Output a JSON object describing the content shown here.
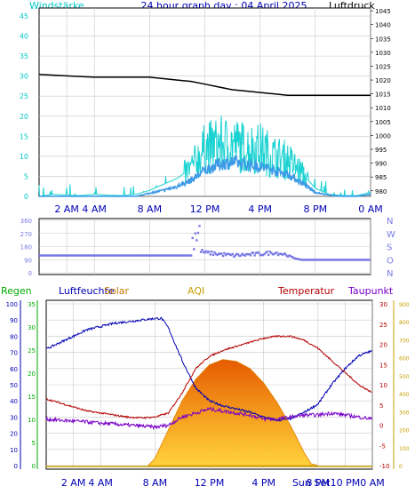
{
  "header": {
    "wind_label": "Windstärke",
    "title": "24 hour graph day : 04 April 2025",
    "pressure_label": "Luftdruck"
  },
  "lower_header": {
    "rain_label": "Regen",
    "humidity_label": "Luftfeuchte",
    "solar_label": "Solar",
    "aqi_label": "AQI",
    "temp_label": "Temperatur",
    "dew_label": "Taupunkt"
  },
  "colors": {
    "wind_label": "#00c8c8",
    "wind_gust": "#19d2d2",
    "wind_avg": "#3c9ae6",
    "pressure": "#000000",
    "direction": "#7878e6",
    "rain": "#00aa00",
    "humidity": "#0000b4",
    "temperature": "#b40000",
    "dewpoint": "#7800c8",
    "solar_top": "#ffd23c",
    "solar_bottom": "#e65a00",
    "aqi": "#c8a000",
    "grid": "#c8c8c8",
    "tick": "#0000b4"
  },
  "chart_data": [
    {
      "type": "line",
      "name": "wind-pressure",
      "x_ticks": [
        "2 AM",
        "4 AM",
        "8 AM",
        "12 PM",
        "4 PM",
        "8 PM",
        "0 AM"
      ],
      "x_tick_hours": [
        2,
        4,
        8,
        12,
        16,
        20,
        24
      ],
      "xlim_hours": [
        0,
        24
      ],
      "left_axis": {
        "label": "Windstärke",
        "ylim": [
          0,
          47
        ],
        "ticks": [
          "0",
          "5",
          "10",
          "15",
          "20",
          "25",
          "30",
          "35",
          "40",
          "45"
        ]
      },
      "right_axis": {
        "label": "Luftdruck",
        "ylim": [
          978,
          1046
        ],
        "ticks": [
          "980",
          "985",
          "990",
          "995",
          "1000",
          "1005",
          "1010",
          "1015",
          "1020",
          "1025",
          "1030",
          "1035",
          "1040",
          "1045"
        ]
      },
      "series": [
        {
          "name": "Luftdruck",
          "axis": "right",
          "x": [
            0,
            2,
            4,
            6,
            8,
            9,
            10,
            11,
            12,
            13,
            14,
            15,
            16,
            17,
            18,
            19,
            20,
            21,
            22,
            23,
            24
          ],
          "y": [
            1022,
            1021.5,
            1021,
            1021,
            1021,
            1020.5,
            1020,
            1019.5,
            1018.5,
            1017.5,
            1016.5,
            1016,
            1015.5,
            1015,
            1014.5,
            1014.5,
            1014.5,
            1014.5,
            1014.5,
            1014.5,
            1014.5
          ]
        },
        {
          "axis": "left",
          "x": [
            0,
            1,
            2,
            3,
            4,
            5,
            6,
            7,
            8,
            9,
            10,
            11,
            12,
            13,
            14,
            15,
            16,
            17,
            18,
            19,
            20,
            21,
            22,
            23,
            24
          ],
          "y": [
            0,
            0.5,
            0.3,
            0.2,
            0.5,
            0.3,
            0.2,
            0.5,
            1.5,
            3,
            4.5,
            7,
            12,
            13,
            13,
            12,
            12,
            10,
            9,
            6,
            2,
            0.5,
            0.2,
            0.2,
            1
          ]
        },
        {
          "axis": "left",
          "x": [
            0,
            1,
            2,
            3,
            4,
            5,
            6,
            7,
            8,
            9,
            10,
            11,
            12,
            13,
            14,
            15,
            16,
            17,
            18,
            19,
            20,
            21,
            22,
            23,
            24
          ],
          "y": [
            0,
            0,
            0,
            0,
            0,
            0,
            0,
            0,
            0.8,
            1.5,
            2.5,
            4,
            6.5,
            8,
            8.5,
            8,
            7.5,
            6.5,
            5.5,
            3.5,
            1,
            0.3,
            0,
            0,
            0.5
          ]
        }
      ]
    },
    {
      "type": "scatter",
      "name": "wind-direction",
      "xlim_hours": [
        0,
        24
      ],
      "left_axis": {
        "ylim": [
          0,
          360
        ],
        "ticks": [
          "0",
          "90",
          "180",
          "270",
          "360"
        ]
      },
      "right_axis": {
        "ticks": [
          "N",
          "W",
          "S",
          "O",
          "N"
        ]
      },
      "series": [
        {
          "axis": "left",
          "x": [
            0,
            2,
            4,
            6,
            8,
            9,
            10,
            10.5,
            11,
            11.2,
            11.5,
            12,
            13,
            14,
            15,
            16,
            17,
            18,
            18.5,
            19,
            20,
            21,
            22,
            23,
            24
          ],
          "y": [
            120,
            120,
            120,
            120,
            120,
            120,
            120,
            120,
            120,
            360,
            160,
            140,
            130,
            120,
            125,
            130,
            140,
            125,
            100,
            90,
            90,
            90,
            90,
            90,
            90
          ]
        }
      ]
    },
    {
      "type": "line",
      "name": "temperature-humidity-solar",
      "x_ticks": [
        "2 AM",
        "4 AM",
        "8 AM",
        "12 PM",
        "4 PM",
        "Sun Set",
        "8 PM",
        "10 PM",
        "0 AM"
      ],
      "x_tick_hours": [
        2,
        4,
        8,
        12,
        16,
        19.5,
        20,
        22,
        24
      ],
      "xlim_hours": [
        0,
        24
      ],
      "left_axis_rain": {
        "label": "Regen",
        "ticks": [
          "0",
          "5",
          "10",
          "15",
          "20",
          "25",
          "30",
          "35"
        ]
      },
      "left_axis_humidity": {
        "label": "Luftfeuchte",
        "ylim": [
          0,
          100
        ],
        "ticks": [
          "0",
          "10",
          "20",
          "30",
          "40",
          "50",
          "60",
          "70",
          "80",
          "90",
          "100"
        ]
      },
      "right_axis_temp": {
        "label": "Temperatur",
        "ylim": [
          -10,
          30
        ],
        "ticks": [
          "-10",
          "-5",
          "0",
          "5",
          "10",
          "15",
          "20",
          "25",
          "30"
        ]
      },
      "right_axis_extra": {
        "ticks": [
          "0",
          "100",
          "200",
          "300",
          "400",
          "500",
          "600",
          "700",
          "800",
          "900"
        ]
      },
      "series": [
        {
          "name": "Luftfeuchte",
          "axis": "humidity",
          "x": [
            0,
            1,
            2,
            3,
            4,
            5,
            6,
            7,
            8,
            8.5,
            9,
            10,
            11,
            12,
            13,
            14,
            15,
            16,
            17,
            18,
            19,
            20,
            21,
            22,
            23,
            24
          ],
          "y": [
            72,
            76,
            80,
            84,
            86,
            88,
            89,
            90,
            91,
            91,
            85,
            65,
            48,
            40,
            37,
            35,
            33,
            30,
            28,
            29,
            33,
            38,
            50,
            60,
            68,
            71
          ]
        },
        {
          "name": "Temperatur",
          "axis": "temp",
          "x": [
            0,
            1,
            2,
            3,
            4,
            5,
            6,
            7,
            8,
            9,
            10,
            11,
            12,
            13,
            14,
            15,
            16,
            17,
            18,
            19,
            20,
            21,
            22,
            23,
            24
          ],
          "y": [
            6.5,
            5.5,
            4.5,
            3.5,
            3,
            2.5,
            2,
            1.8,
            2,
            3,
            8,
            14,
            17,
            18.5,
            19.5,
            20.5,
            21.5,
            22,
            22,
            21,
            19,
            16,
            13,
            10,
            8
          ]
        },
        {
          "name": "Taupunkt",
          "axis": "temp",
          "x": [
            0,
            1,
            2,
            3,
            4,
            5,
            6,
            7,
            8,
            9,
            10,
            11,
            12,
            13,
            14,
            15,
            16,
            17,
            18,
            19,
            20,
            21,
            22,
            23,
            24
          ],
          "y": [
            1.5,
            1.2,
            1,
            0.8,
            0.5,
            0.3,
            0,
            -0.2,
            -0.5,
            0,
            2,
            3,
            4,
            3.5,
            3,
            2.5,
            1.5,
            1.5,
            2,
            2.5,
            2.5,
            3,
            2.5,
            2,
            1.5
          ]
        },
        {
          "name": "Solar",
          "axis": "extra",
          "x": [
            7.5,
            8,
            9,
            10,
            11,
            12,
            13,
            14,
            15,
            16,
            17,
            18,
            19,
            19.5,
            20
          ],
          "y": [
            0,
            40,
            200,
            360,
            480,
            560,
            590,
            580,
            540,
            460,
            350,
            220,
            70,
            10,
            0
          ]
        },
        {
          "name": "Regen",
          "axis": "rain",
          "x": [
            0,
            24
          ],
          "y": [
            0,
            0
          ]
        }
      ]
    }
  ]
}
